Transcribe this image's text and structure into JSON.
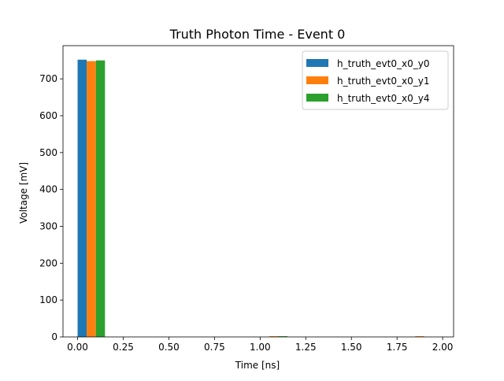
{
  "chart_data": {
    "type": "bar",
    "title": "Truth Photon Time - Event 0",
    "xlabel": "Time [ns]",
    "ylabel": "Voltage [mV]",
    "xlim": [
      -0.08,
      2.06
    ],
    "ylim": [
      0,
      790
    ],
    "xticks": [
      "0.00",
      "0.25",
      "0.50",
      "0.75",
      "1.00",
      "1.25",
      "1.50",
      "1.75",
      "2.00"
    ],
    "yticks": [
      "0",
      "100",
      "200",
      "300",
      "400",
      "500",
      "600",
      "700"
    ],
    "bin_width": 0.05,
    "legend_position": "top-right",
    "grid": false,
    "series": [
      {
        "name": "h_truth_evt0_x0_y0",
        "color": "#1f77b4",
        "bars": [
          {
            "x": 0.025,
            "y": 752
          }
        ]
      },
      {
        "name": "h_truth_evt0_x0_y1",
        "color": "#ff7f0e",
        "bars": [
          {
            "x": 0.075,
            "y": 748
          },
          {
            "x": 1.075,
            "y": 2
          },
          {
            "x": 1.875,
            "y": 2
          }
        ]
      },
      {
        "name": "h_truth_evt0_x0_y4",
        "color": "#2ca02c",
        "bars": [
          {
            "x": 0.125,
            "y": 750
          },
          {
            "x": 1.125,
            "y": 2
          }
        ]
      }
    ]
  }
}
